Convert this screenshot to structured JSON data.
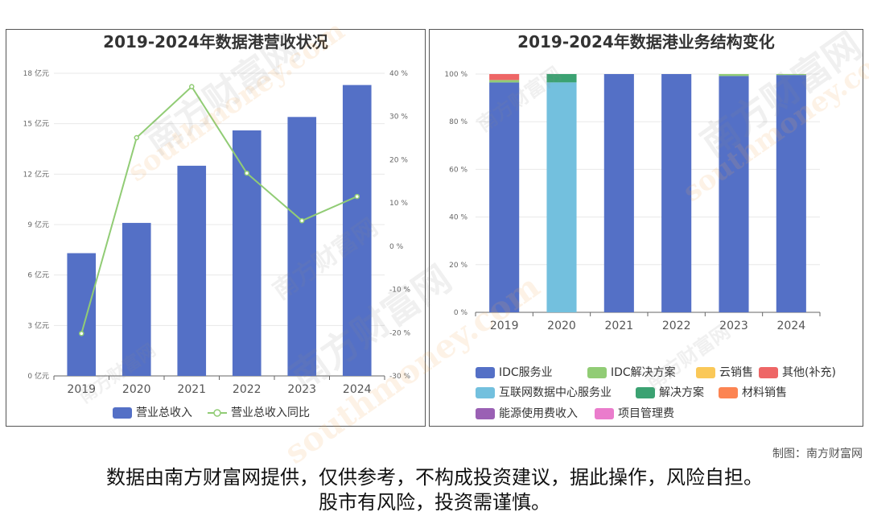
{
  "chart_data": [
    {
      "type": "bar",
      "title": "2019-2024年数据港营收状况",
      "categories": [
        "2019",
        "2020",
        "2021",
        "2022",
        "2023",
        "2024"
      ],
      "y_left": {
        "ticks": [
          "0 亿元",
          "3 亿元",
          "6 亿元",
          "9 亿元",
          "12 亿元",
          "15 亿元",
          "18 亿元"
        ],
        "ylim": [
          0,
          18
        ]
      },
      "y_right": {
        "ticks": [
          "-30 %",
          "-20 %",
          "-10 %",
          "0 %",
          "10 %",
          "20 %",
          "30 %",
          "40 %"
        ],
        "ylim": [
          -30,
          40
        ]
      },
      "series": [
        {
          "name": "营业总收入",
          "type": "bar",
          "axis": "left",
          "values": [
            7.3,
            9.1,
            12.5,
            14.6,
            15.4,
            17.3
          ]
        },
        {
          "name": "营业总收入同比",
          "type": "line",
          "axis": "right",
          "values": [
            -20.2,
            25.1,
            36.9,
            16.9,
            5.9,
            11.5
          ]
        }
      ],
      "legend_position": "bottom",
      "colors": {
        "bar": "#5470c6",
        "line": "#91cc75"
      }
    },
    {
      "type": "bar",
      "stacked": true,
      "title": "2019-2024年数据港业务结构变化",
      "categories": [
        "2019",
        "2020",
        "2021",
        "2022",
        "2023",
        "2024"
      ],
      "y": {
        "ticks": [
          "0 %",
          "20 %",
          "40 %",
          "60 %",
          "80 %",
          "100 %"
        ],
        "ylim": [
          0,
          100
        ]
      },
      "series": [
        {
          "name": "IDC服务业",
          "color": "#5470c6",
          "values": [
            96.5,
            0,
            100,
            100,
            99.2,
            99.6
          ]
        },
        {
          "name": "IDC解决方案",
          "color": "#91cc75",
          "values": [
            1.0,
            0,
            0,
            0,
            0.8,
            0.4
          ]
        },
        {
          "name": "云销售",
          "color": "#fac858",
          "values": [
            0,
            0,
            0,
            0,
            0,
            0
          ]
        },
        {
          "name": "其他(补充)",
          "color": "#ee6666",
          "values": [
            2.5,
            0,
            0,
            0,
            0,
            0
          ]
        },
        {
          "name": "互联网数据中心服务业",
          "color": "#73c0de",
          "values": [
            0,
            96.5,
            0,
            0,
            0,
            0
          ]
        },
        {
          "name": "解决方案",
          "color": "#3ba272",
          "values": [
            0,
            3.5,
            0,
            0,
            0,
            0
          ]
        },
        {
          "name": "材料销售",
          "color": "#fc8452",
          "values": [
            0,
            0,
            0,
            0,
            0,
            0
          ]
        },
        {
          "name": "能源使用费收入",
          "color": "#9a60b4",
          "values": [
            0,
            0,
            0,
            0,
            0,
            0
          ]
        },
        {
          "name": "项目管理费",
          "color": "#ea7ccc",
          "values": [
            0,
            0,
            0,
            0,
            0,
            0
          ]
        }
      ],
      "legend_position": "bottom"
    }
  ],
  "credit": "制图：南方财富网",
  "disclaimer": {
    "line1": "数据由南方财富网提供，仅供参考，不构成投资建议，据此操作，风险自担。",
    "line2": "股市有风险，投资需谨慎。"
  },
  "watermark": {
    "text": "南方财富网",
    "text_en": "southmoney.com"
  }
}
